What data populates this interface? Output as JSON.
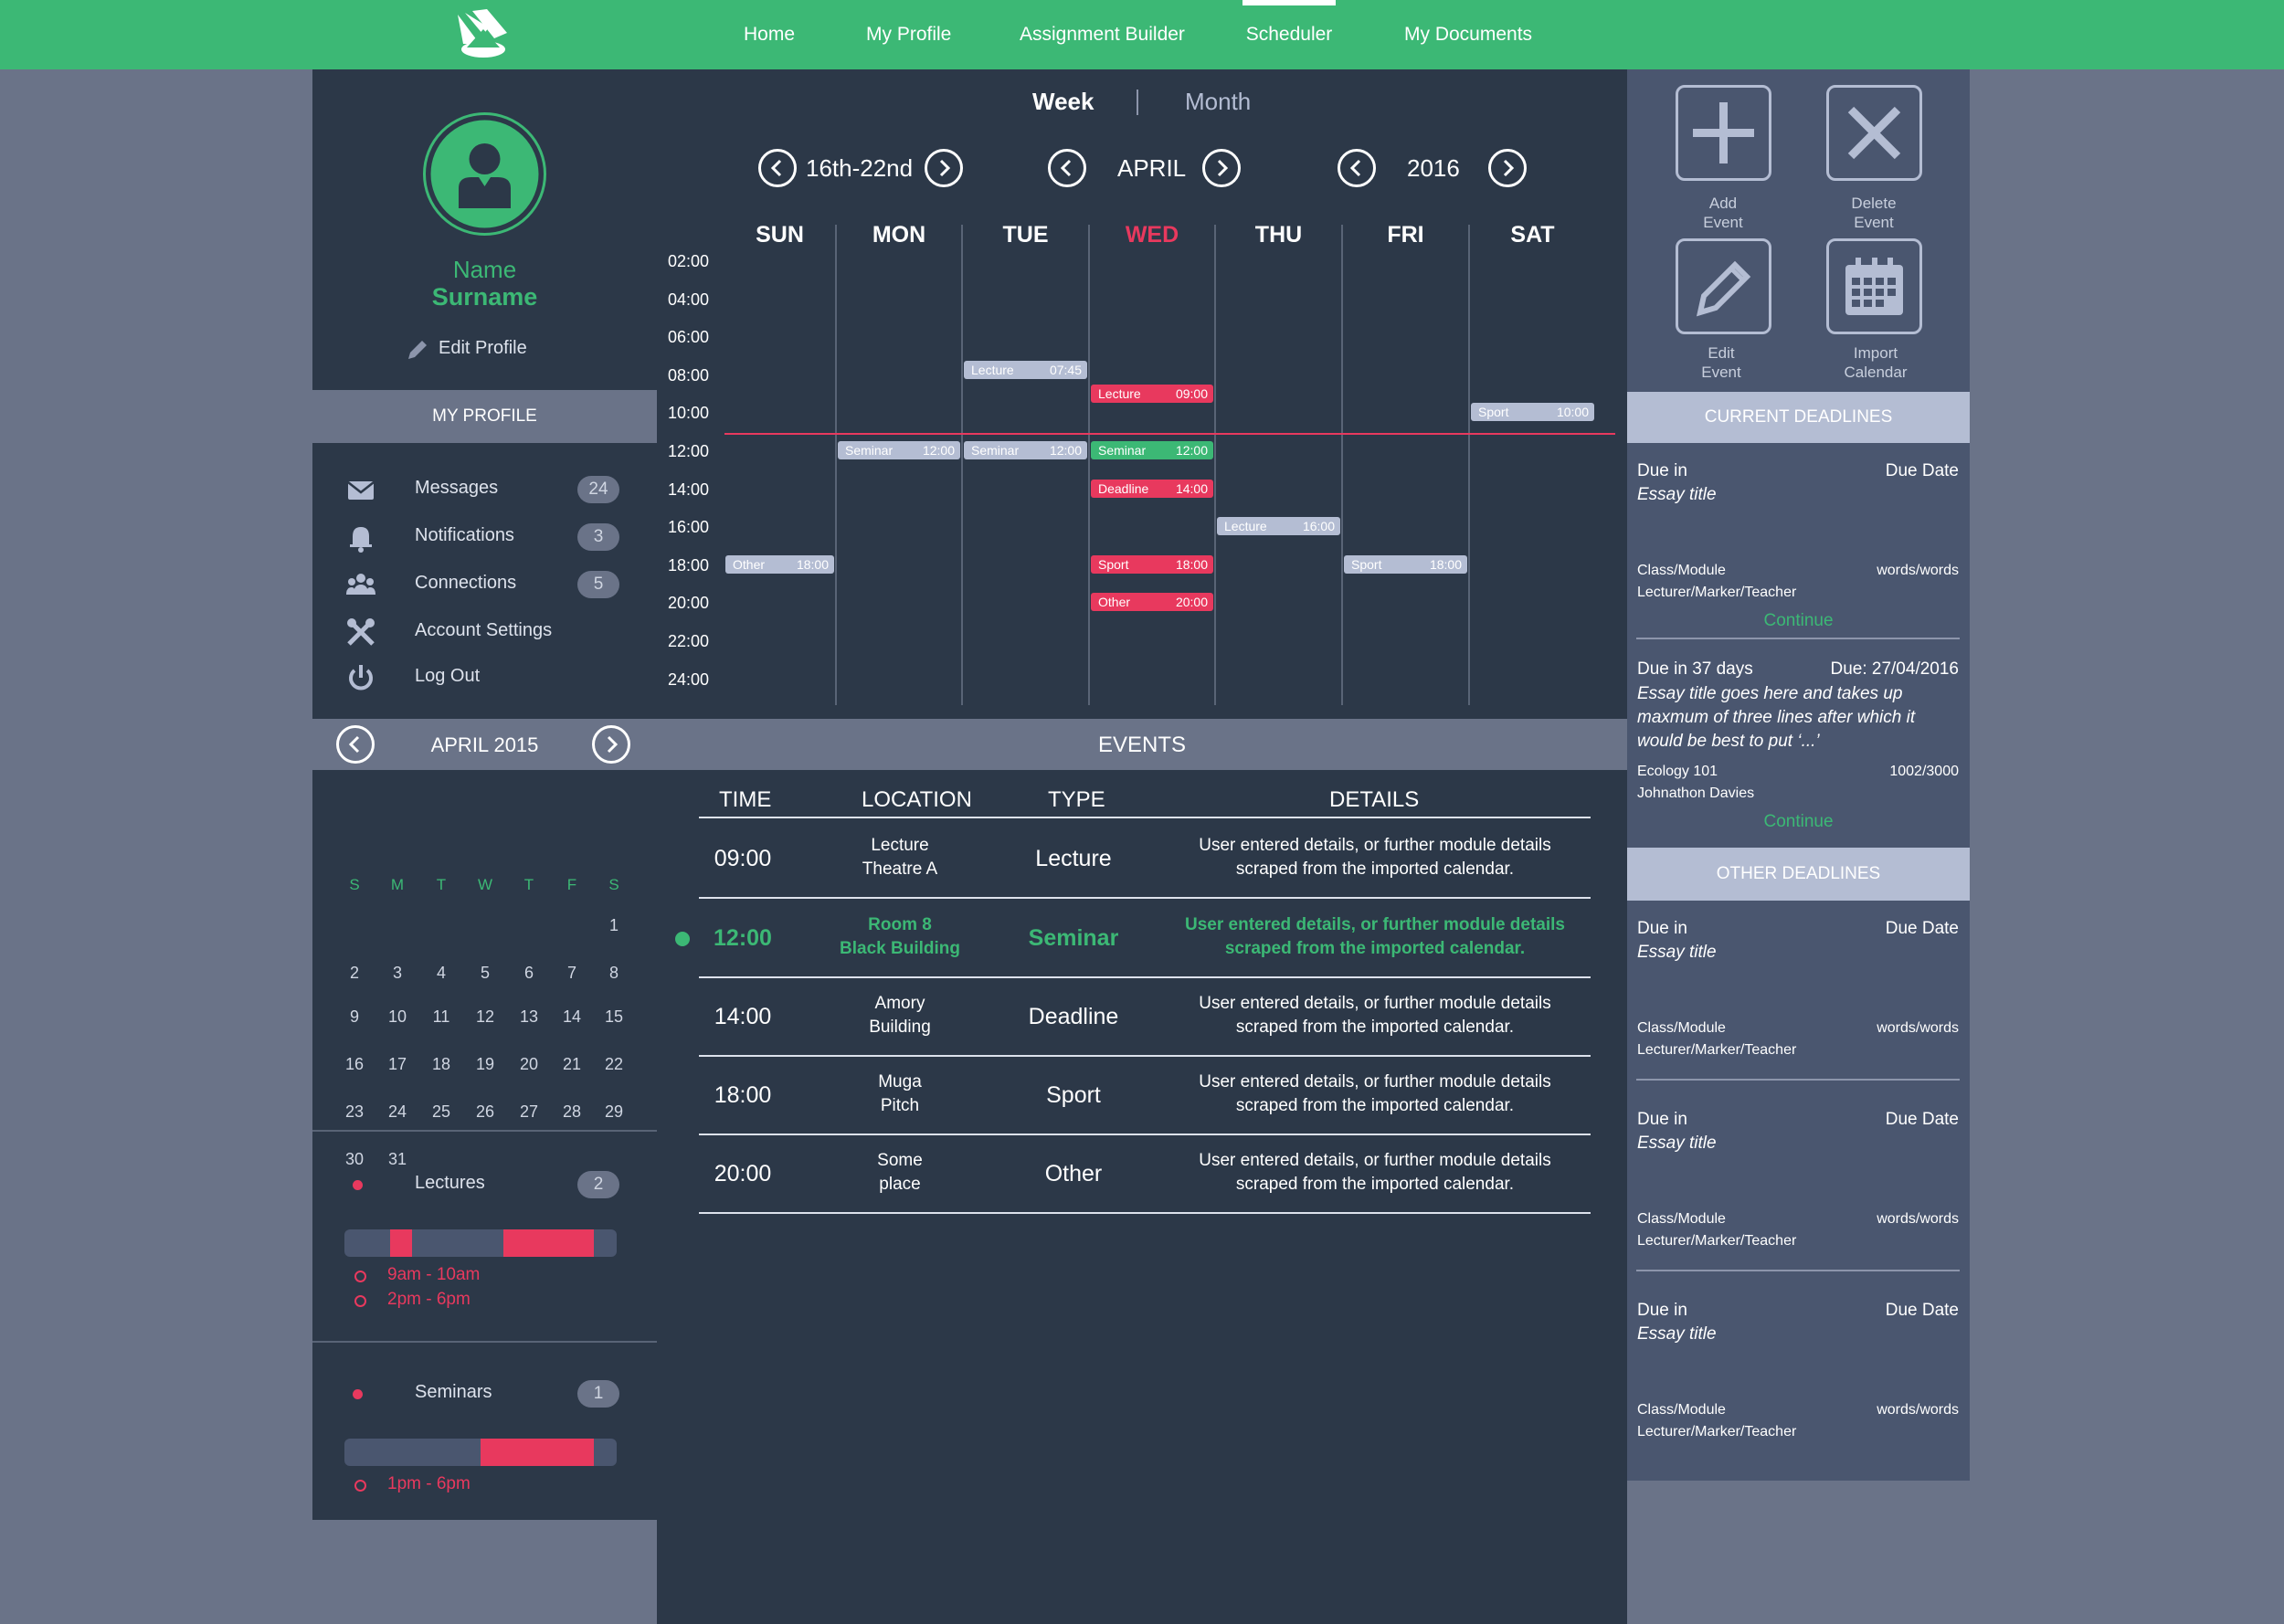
{
  "nav": {
    "items": [
      "Home",
      "My Profile",
      "Assignment Builder",
      "Scheduler",
      "My Documents"
    ],
    "active": "Scheduler"
  },
  "profile": {
    "first": "Name",
    "last": "Surname",
    "edit": "Edit Profile",
    "section": "MY PROFILE",
    "menu": [
      {
        "label": "Messages",
        "count": "24",
        "icon": "envelope-icon"
      },
      {
        "label": "Notifications",
        "count": "3",
        "icon": "bell-icon"
      },
      {
        "label": "Connections",
        "count": "5",
        "icon": "people-icon"
      },
      {
        "label": "Account Settings",
        "count": "",
        "icon": "wrench-icon"
      },
      {
        "label": "Log Out",
        "count": "",
        "icon": "power-icon"
      }
    ]
  },
  "minical": {
    "title": "APRIL 2015",
    "days": [
      "S",
      "M",
      "T",
      "W",
      "T",
      "F",
      "S"
    ],
    "weeks": [
      [
        "",
        "",
        "",
        "",
        "",
        "",
        "1"
      ],
      [
        "2",
        "3",
        "4",
        "5",
        "6",
        "7",
        "8"
      ],
      [
        "9",
        "10",
        "11",
        "12",
        "13",
        "14",
        "15"
      ],
      [
        "16",
        "17",
        "18",
        "19",
        "20",
        "21",
        "22"
      ],
      [
        "23",
        "24",
        "25",
        "26",
        "27",
        "28",
        "29"
      ],
      [
        "30",
        "31",
        "",
        "",
        "",
        "",
        ""
      ]
    ]
  },
  "summaries": [
    {
      "label": "Lectures",
      "count": "2",
      "ranges": [
        "9am - 10am",
        "2pm - 6pm"
      ]
    },
    {
      "label": "Seminars",
      "count": "1",
      "ranges": [
        "1pm - 6pm"
      ]
    }
  ],
  "scheduler": {
    "views": [
      "Week",
      "Month"
    ],
    "active_view": "Week",
    "week": "16th-22nd",
    "month": "APRIL",
    "year": "2016",
    "days": [
      "SUN",
      "MON",
      "TUE",
      "WED",
      "THU",
      "FRI",
      "SAT"
    ],
    "highlight_day": "WED",
    "hours": [
      "02:00",
      "04:00",
      "06:00",
      "08:00",
      "10:00",
      "12:00",
      "14:00",
      "16:00",
      "18:00",
      "20:00",
      "22:00",
      "24:00"
    ],
    "events": [
      {
        "day": 2,
        "label": "Lecture",
        "time": "07:45",
        "color": "grey"
      },
      {
        "day": 3,
        "label": "Lecture",
        "time": "09:00",
        "color": "red"
      },
      {
        "day": 6,
        "label": "Sport",
        "time": "10:00",
        "color": "grey"
      },
      {
        "day": 1,
        "label": "Seminar",
        "time": "12:00",
        "color": "grey"
      },
      {
        "day": 2,
        "label": "Seminar",
        "time": "12:00",
        "color": "grey"
      },
      {
        "day": 3,
        "label": "Seminar",
        "time": "12:00",
        "color": "green"
      },
      {
        "day": 3,
        "label": "Deadline",
        "time": "14:00",
        "color": "red"
      },
      {
        "day": 4,
        "label": "Lecture",
        "time": "16:00",
        "color": "grey"
      },
      {
        "day": 0,
        "label": "Other",
        "time": "18:00",
        "color": "grey"
      },
      {
        "day": 3,
        "label": "Sport",
        "time": "18:00",
        "color": "red"
      },
      {
        "day": 5,
        "label": "Sport",
        "time": "18:00",
        "color": "grey"
      },
      {
        "day": 3,
        "label": "Other",
        "time": "20:00",
        "color": "red"
      }
    ]
  },
  "events_table": {
    "title": "EVENTS",
    "headers": [
      "TIME",
      "LOCATION",
      "TYPE",
      "DETAILS"
    ],
    "rows": [
      {
        "time": "09:00",
        "loc1": "Lecture",
        "loc2": "Theatre A",
        "type": "Lecture",
        "d1": "User entered details, or further module details",
        "d2": "scraped from the imported calendar.",
        "current": false
      },
      {
        "time": "12:00",
        "loc1": "Room 8",
        "loc2": "Black Building",
        "type": "Seminar",
        "d1": "User entered details, or further module details",
        "d2": "scraped from the imported calendar.",
        "current": true
      },
      {
        "time": "14:00",
        "loc1": "Amory",
        "loc2": "Building",
        "type": "Deadline",
        "d1": "User entered details, or further module details",
        "d2": "scraped from the imported calendar.",
        "current": false
      },
      {
        "time": "18:00",
        "loc1": "Muga",
        "loc2": "Pitch",
        "type": "Sport",
        "d1": "User entered details, or further module details",
        "d2": "scraped from the imported calendar.",
        "current": false
      },
      {
        "time": "20:00",
        "loc1": "Some",
        "loc2": "place",
        "type": "Other",
        "d1": "User entered details, or further module details",
        "d2": "scraped from the imported calendar.",
        "current": false
      }
    ]
  },
  "actions": [
    {
      "l1": "Add",
      "l2": "Event",
      "icon": "plus-icon"
    },
    {
      "l1": "Delete",
      "l2": "Event",
      "icon": "x-icon"
    },
    {
      "l1": "Edit",
      "l2": "Event",
      "icon": "pencil-icon"
    },
    {
      "l1": "Import",
      "l2": "Calendar",
      "icon": "calendar-icon"
    }
  ],
  "current_deadlines": {
    "title": "CURRENT DEADLINES",
    "items": [
      {
        "due_in": "Due in",
        "due": "Due Date",
        "title_lines": [
          "Essay title"
        ],
        "module": "Class/Module",
        "words": "words/words",
        "teacher": "Lecturer/Marker/Teacher",
        "action": "Continue"
      },
      {
        "due_in": "Due in 37 days",
        "due": "Due: 27/04/2016",
        "title_lines": [
          "Essay title goes here and takes up",
          "maxmum of three lines after which it",
          "would be best to put ‘...’"
        ],
        "module": "Ecology 101",
        "words": "1002/3000",
        "teacher": "Johnathon Davies",
        "action": "Continue"
      }
    ]
  },
  "other_deadlines": {
    "title": "OTHER DEADLINES",
    "items": [
      {
        "due_in": "Due in",
        "due": "Due Date",
        "title": "Essay title",
        "module": "Class/Module",
        "words": "words/words",
        "teacher": "Lecturer/Marker/Teacher"
      },
      {
        "due_in": "Due in",
        "due": "Due Date",
        "title": "Essay title",
        "module": "Class/Module",
        "words": "words/words",
        "teacher": "Lecturer/Marker/Teacher"
      },
      {
        "due_in": "Due in",
        "due": "Due Date",
        "title": "Essay title",
        "module": "Class/Module",
        "words": "words/words",
        "teacher": "Lecturer/Marker/Teacher"
      }
    ]
  },
  "colors": {
    "green": "#3cb875",
    "red": "#e8395e",
    "dark": "#2c3848",
    "slate": "#4a566f",
    "grey": "#b4bdd3"
  }
}
